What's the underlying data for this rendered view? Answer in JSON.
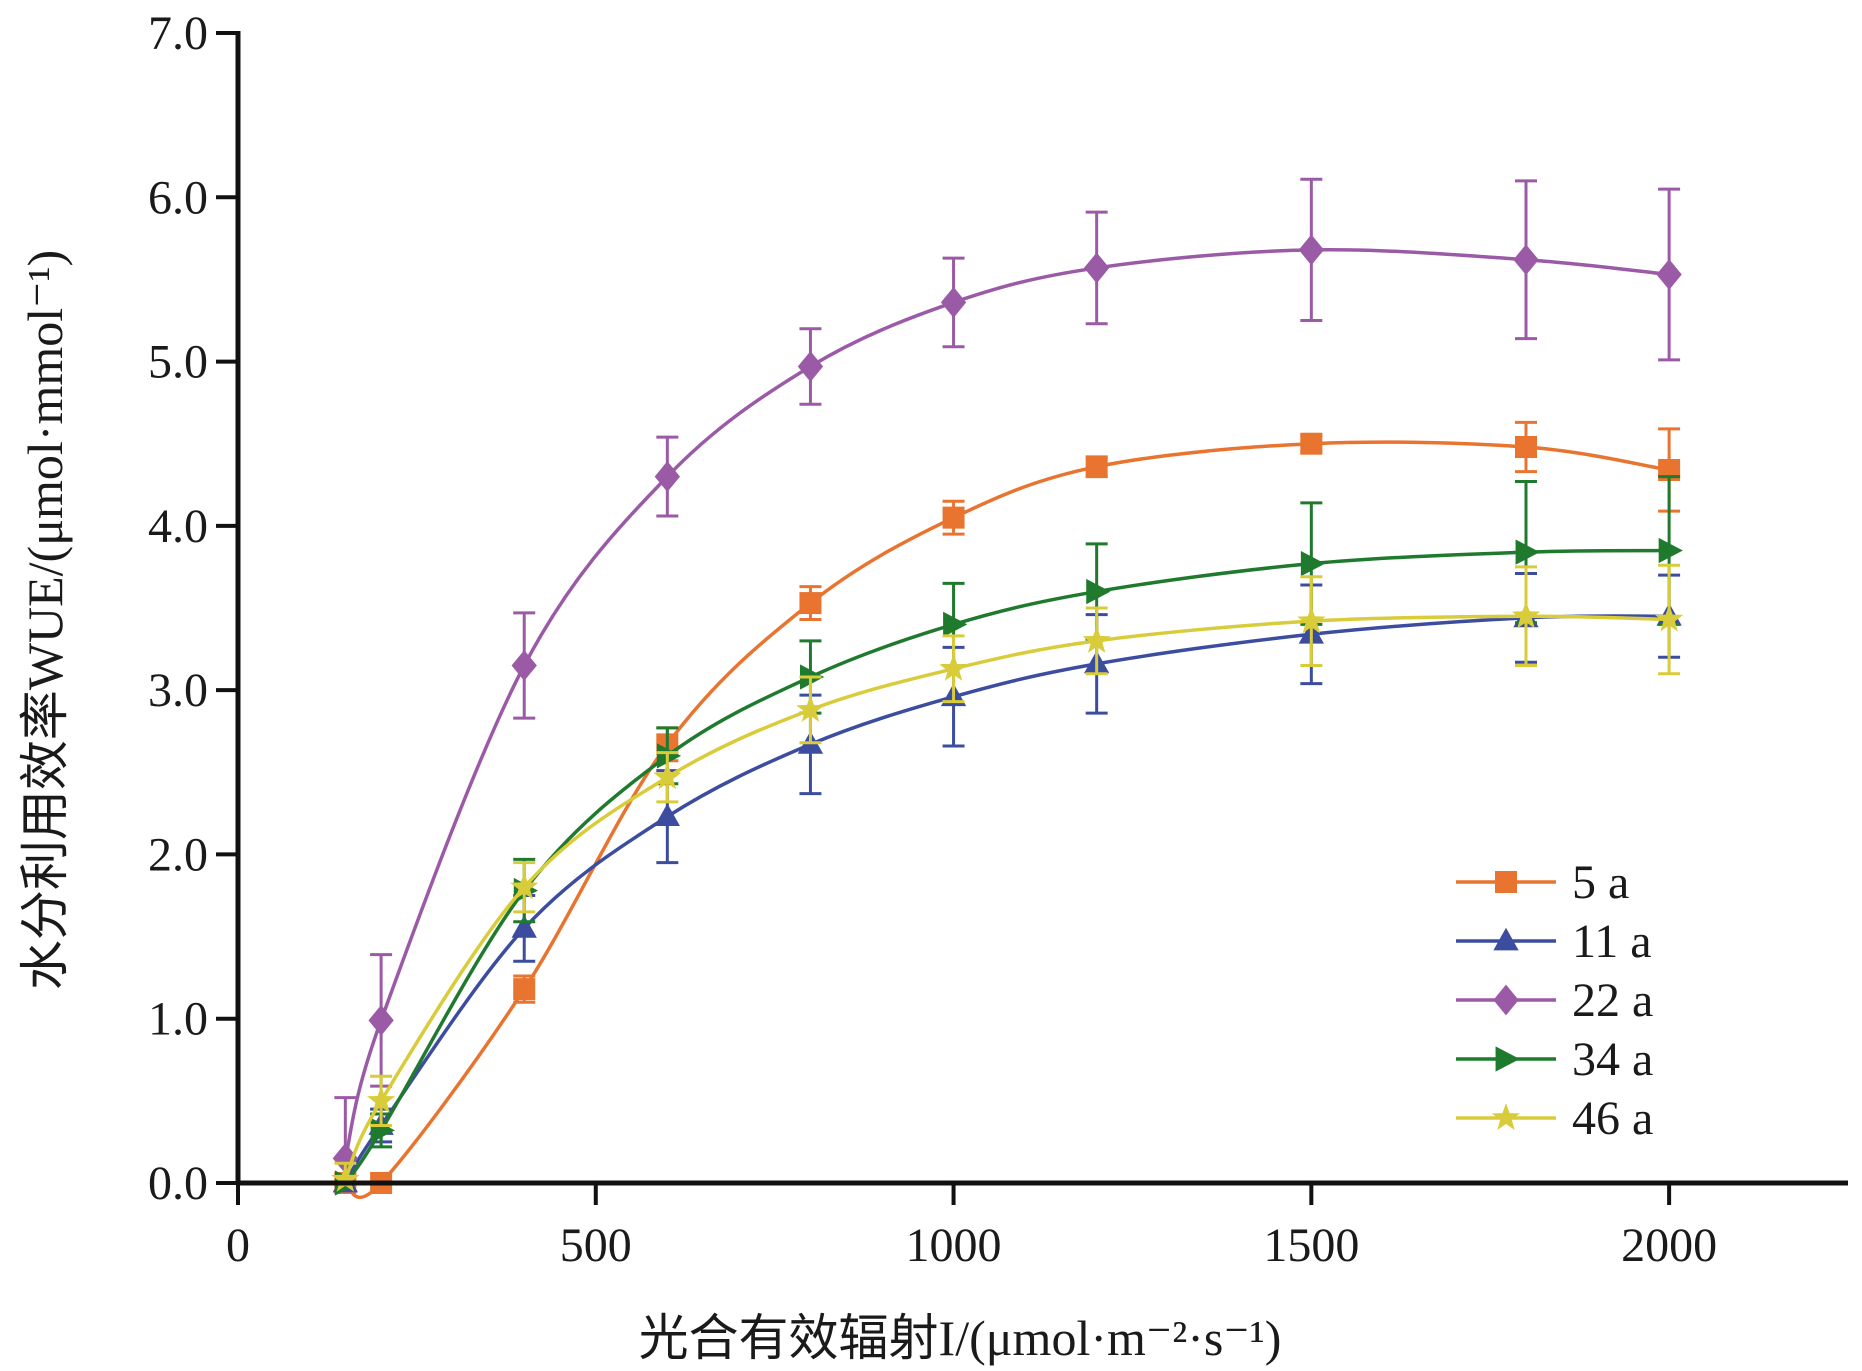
{
  "chart_data": {
    "type": "line",
    "xlabel": "光合有效辐射I/(μmol·m⁻²·s⁻¹)",
    "ylabel": "水分利用效率WUE/(μmol·mmol⁻¹)",
    "xlim": [
      0,
      2250
    ],
    "ylim": [
      0,
      7
    ],
    "xticks": [
      0,
      500,
      1000,
      1500,
      2000
    ],
    "yticks": [
      0,
      1,
      2,
      3,
      4,
      5,
      6,
      7
    ],
    "xtick_labels": [
      "0",
      "500",
      "1000",
      "1500",
      "2000"
    ],
    "ytick_labels": [
      "0.0",
      "1.0",
      "2.0",
      "3.0",
      "4.0",
      "5.0",
      "6.0",
      "7.0"
    ],
    "legend_position": "lower-right",
    "grid": false,
    "series": [
      {
        "name": "5 a",
        "color": "#e8742f",
        "marker": "square",
        "x": [
          150,
          200,
          400,
          600,
          800,
          1000,
          1200,
          1500,
          1800,
          2000
        ],
        "y": [
          0.0,
          0.0,
          1.18,
          2.67,
          3.53,
          4.05,
          4.36,
          4.5,
          4.48,
          4.34
        ],
        "err": [
          0.0,
          0.0,
          0.08,
          0.1,
          0.1,
          0.1,
          0.06,
          0.05,
          0.15,
          0.25
        ]
      },
      {
        "name": "11 a",
        "color": "#3c4da0",
        "marker": "triangle",
        "x": [
          150,
          200,
          400,
          600,
          800,
          1000,
          1200,
          1500,
          1800,
          2000
        ],
        "y": [
          0.0,
          0.35,
          1.55,
          2.23,
          2.67,
          2.96,
          3.16,
          3.34,
          3.44,
          3.45
        ],
        "err": [
          0.0,
          0.1,
          0.2,
          0.28,
          0.3,
          0.3,
          0.3,
          0.3,
          0.27,
          0.25
        ]
      },
      {
        "name": "22 a",
        "color": "#9b5aa6",
        "marker": "diamond",
        "x": [
          150,
          200,
          400,
          600,
          800,
          1000,
          1200,
          1500,
          1800,
          2000
        ],
        "y": [
          0.15,
          0.99,
          3.15,
          4.3,
          4.97,
          5.36,
          5.57,
          5.68,
          5.62,
          5.53
        ],
        "err": [
          0.37,
          0.4,
          0.32,
          0.24,
          0.23,
          0.27,
          0.34,
          0.43,
          0.48,
          0.52
        ]
      },
      {
        "name": "34 a",
        "color": "#1f7a2e",
        "marker": "triangle-right",
        "x": [
          150,
          200,
          400,
          600,
          800,
          1000,
          1200,
          1500,
          1800,
          2000
        ],
        "y": [
          0.0,
          0.32,
          1.78,
          2.6,
          3.08,
          3.4,
          3.6,
          3.77,
          3.84,
          3.85
        ],
        "err": [
          0.0,
          0.1,
          0.19,
          0.17,
          0.22,
          0.25,
          0.29,
          0.37,
          0.43,
          0.45
        ]
      },
      {
        "name": "46 a",
        "color": "#d9cc3a",
        "marker": "star",
        "x": [
          150,
          200,
          400,
          600,
          800,
          1000,
          1200,
          1500,
          1800,
          2000
        ],
        "y": [
          0.02,
          0.5,
          1.8,
          2.47,
          2.88,
          3.13,
          3.3,
          3.42,
          3.45,
          3.43
        ],
        "err": [
          0.1,
          0.15,
          0.15,
          0.15,
          0.2,
          0.2,
          0.2,
          0.27,
          0.3,
          0.33
        ]
      }
    ]
  }
}
